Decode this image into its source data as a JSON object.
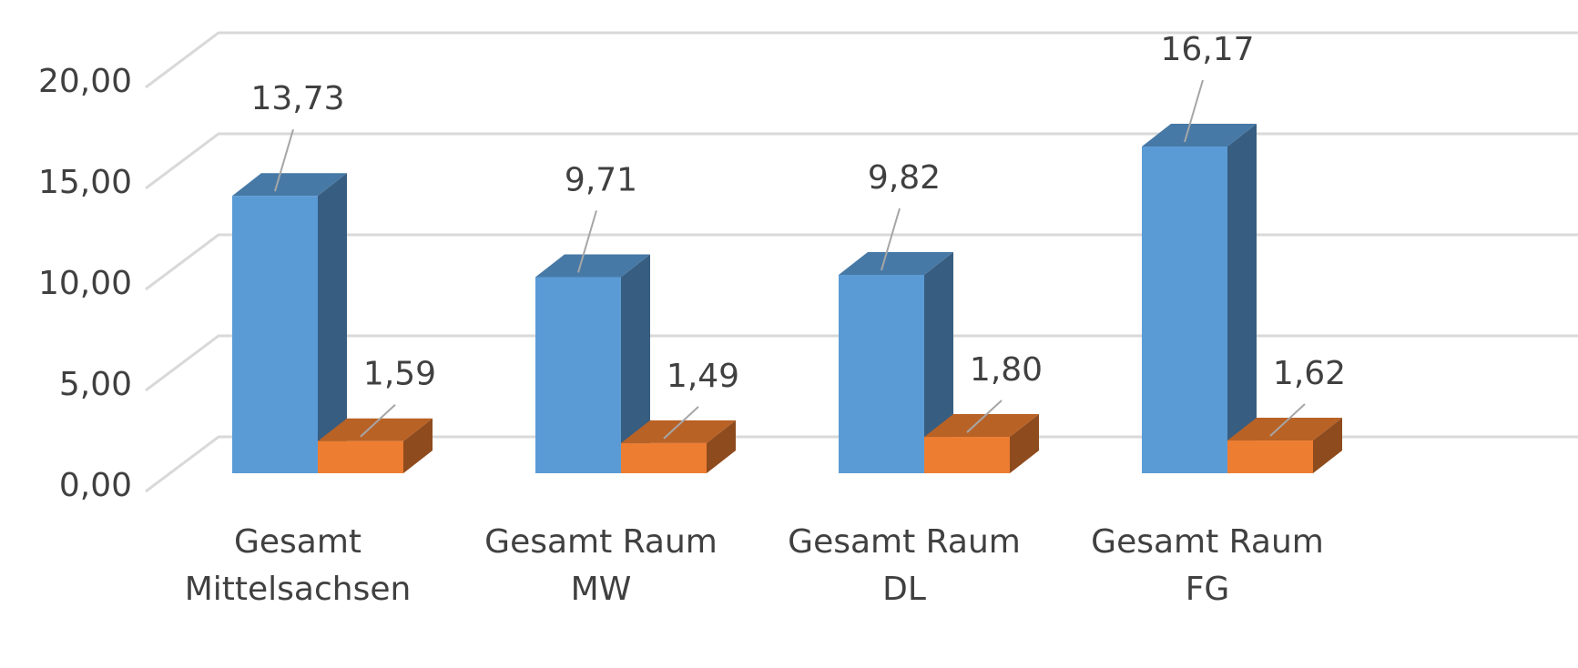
{
  "chart_data": {
    "type": "bar3d",
    "categories": [
      [
        "Gesamt",
        "Mittelsachsen"
      ],
      [
        "Gesamt Raum",
        "MW"
      ],
      [
        "Gesamt Raum",
        "DL"
      ],
      [
        "Gesamt Raum",
        "FG"
      ]
    ],
    "series": [
      {
        "color": "#5b9bd5",
        "values": [
          13.73,
          9.71,
          9.82,
          16.17
        ],
        "value_labels": [
          "13,73",
          "9,71",
          "9,82",
          "16,17"
        ]
      },
      {
        "color": "#ed7d31",
        "values": [
          1.59,
          1.49,
          1.8,
          1.62
        ],
        "value_labels": [
          "1,59",
          "1,49",
          "1,80",
          "1,62"
        ]
      }
    ],
    "ylim": [
      0,
      20
    ],
    "yticks": [
      {
        "value": 0,
        "label": "0,00"
      },
      {
        "value": 5,
        "label": "5,00"
      },
      {
        "value": 10,
        "label": "10,00"
      },
      {
        "value": 15,
        "label": "15,00"
      },
      {
        "value": 20,
        "label": "20,00"
      }
    ],
    "grid": true
  }
}
